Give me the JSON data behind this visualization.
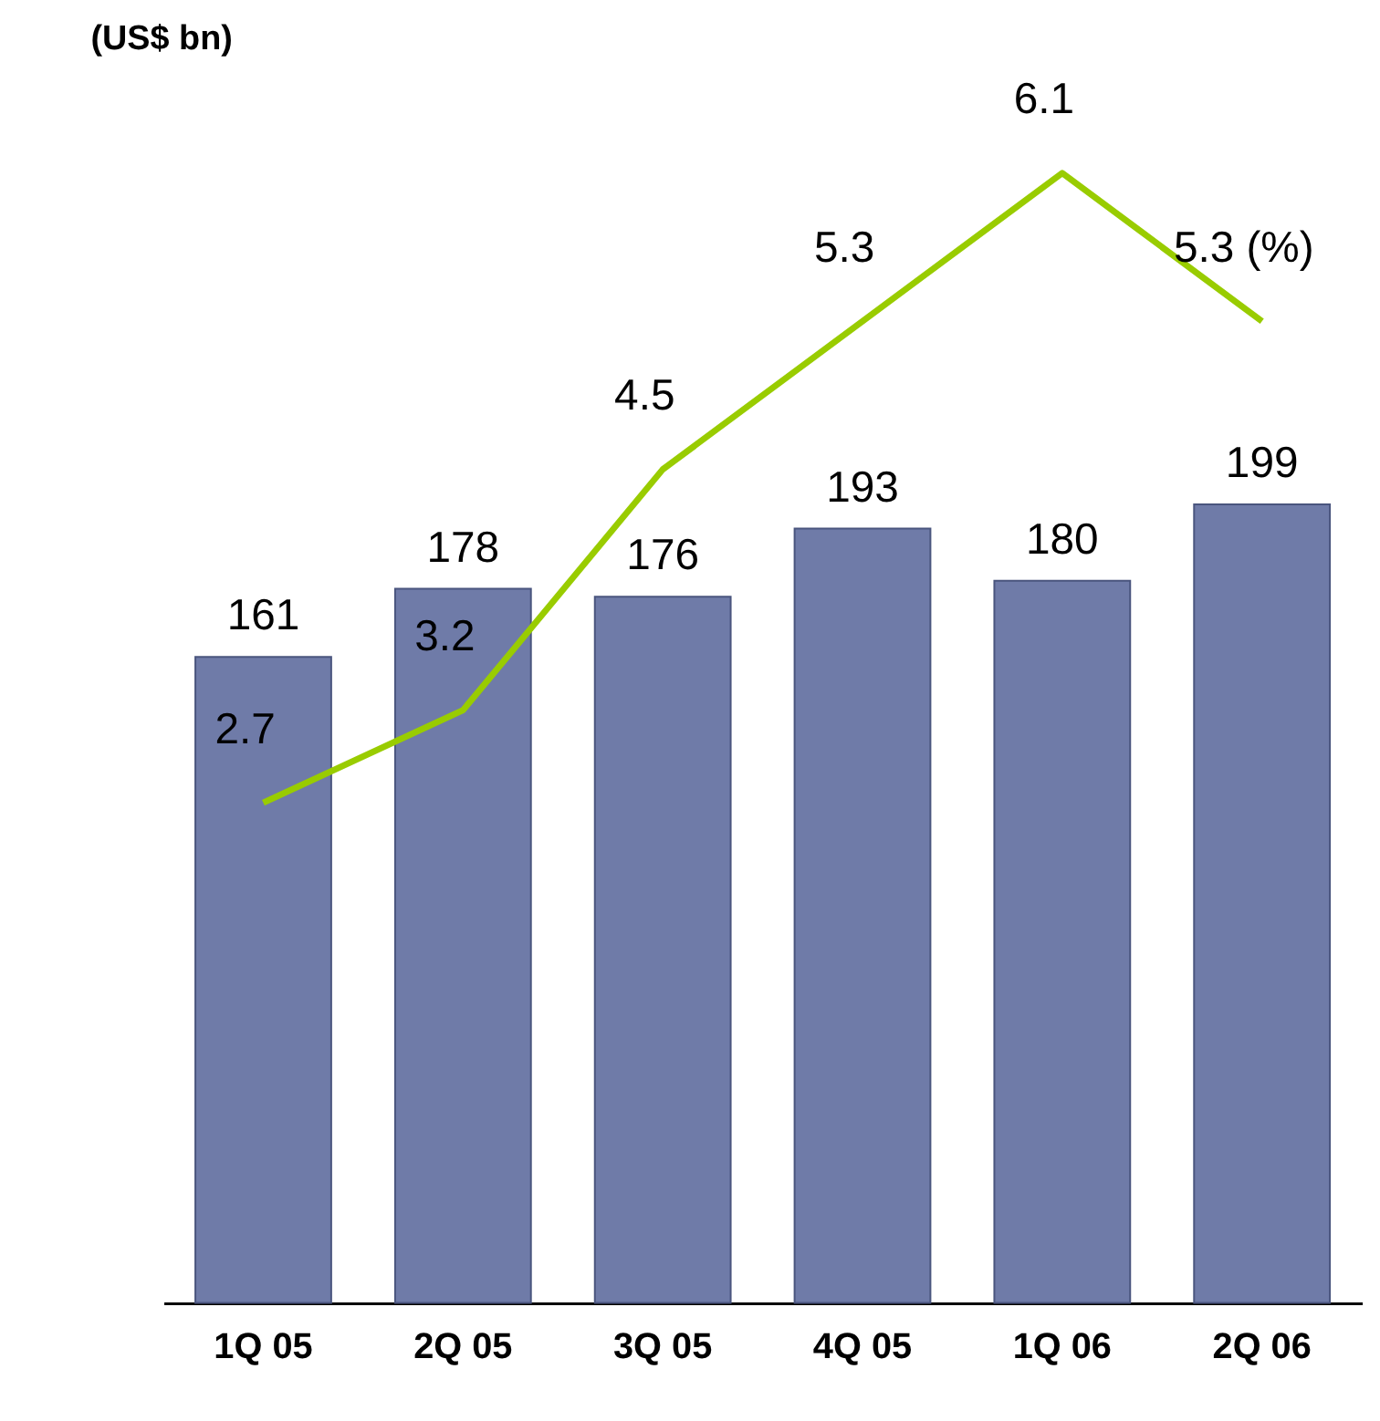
{
  "chart_data": {
    "type": "bar",
    "annotations": [
      "(US$ bn)"
    ],
    "categories": [
      "1Q 05",
      "2Q 05",
      "3Q 05",
      "4Q 05",
      "1Q 06",
      "2Q 06"
    ],
    "series": [
      {
        "color": "#6f7ba8",
        "values": [
          161,
          178,
          176,
          193,
          180,
          199
        ],
        "data_labels": true
      },
      {
        "type": "line",
        "axis": "y2",
        "color": "#99cc00",
        "values": [
          2.7,
          3.2,
          4.5,
          5.3,
          6.1,
          5.3
        ],
        "value_labels": [
          "2.7",
          "3.2",
          "4.5",
          "5.3",
          "6.1",
          "5.3 (%)"
        ]
      }
    ],
    "tick_labels": "x",
    "grid": false,
    "line_style": "solid"
  }
}
